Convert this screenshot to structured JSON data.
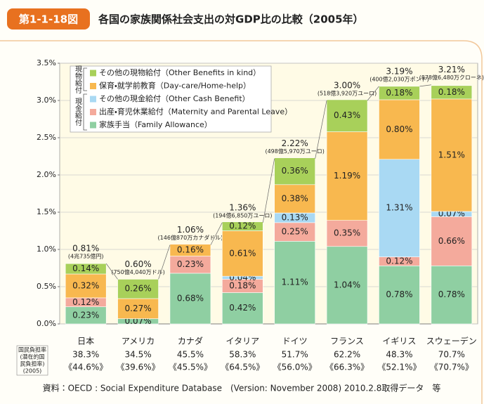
{
  "chart_data": {
    "type": "stacked_bar",
    "badge": "第1-1-18図",
    "title": "各国の家族関係社会支出の対GDP比の比較（2005年）",
    "categories": [
      "日本",
      "アメリカ",
      "カナダ",
      "イタリア",
      "ドイツ",
      "フランス",
      "イギリス",
      "スウェーデン"
    ],
    "series": [
      {
        "name": "家族手当（Family Allowance）",
        "color": "#8fcfa2",
        "values": [
          0.23,
          0.07,
          0.68,
          0.42,
          1.11,
          1.04,
          0.78,
          0.78
        ],
        "value_labels": [
          "0.23%",
          "0.07%",
          "0.68%",
          "0.42%",
          "1.11%",
          "1.04%",
          "0.78%",
          "0.78%"
        ]
      },
      {
        "name": "出産・育児休業給付（Maternity and Parental Leave）",
        "color": "#f4aa9c",
        "values": [
          0.12,
          null,
          0.23,
          0.18,
          0.25,
          0.35,
          0.12,
          0.66
        ],
        "value_labels": [
          "0.12%",
          null,
          "0.23%",
          "0.18%",
          "0.25%",
          "0.35%",
          "0.12%",
          "0.66%"
        ]
      },
      {
        "name": "その他の現金給付（Other Cash Benefit）",
        "color": "#a9d9f3",
        "values": [
          null,
          null,
          null,
          0.04,
          0.13,
          null,
          1.31,
          0.07
        ],
        "value_labels": [
          null,
          null,
          null,
          "0.04%",
          "0.13%",
          null,
          "1.31%",
          "0.07%"
        ]
      },
      {
        "name": "保育・就学前教育（Day-care/Home-help）",
        "color": "#f8b84f",
        "values": [
          0.32,
          0.27,
          0.16,
          0.61,
          0.38,
          1.19,
          0.8,
          1.51
        ],
        "value_labels": [
          "0.32%",
          "0.27%",
          "0.16%",
          "0.61%",
          "0.38%",
          "1.19%",
          "0.80%",
          "1.51%"
        ]
      },
      {
        "name": "その他の現物給付（Other Benefits in kind）",
        "color": "#a8d05a",
        "values": [
          0.14,
          0.26,
          null,
          0.12,
          0.36,
          0.43,
          0.18,
          0.18
        ],
        "value_labels": [
          "0.14%",
          "0.26%",
          null,
          "0.12%",
          "0.36%",
          "0.43%",
          "0.18%",
          "0.18%"
        ]
      }
    ],
    "legend_groups": [
      "現物給付",
      "現金給付"
    ],
    "totals": {
      "values": [
        0.81,
        0.6,
        1.06,
        1.36,
        2.22,
        3.0,
        3.19,
        3.21
      ],
      "value_labels": [
        "0.81%",
        "0.60%",
        "1.06%",
        "1.36%",
        "2.22%",
        "3.00%",
        "3.19%",
        "3.21%"
      ],
      "notes": [
        "(4兆735億円)",
        "(750億4,040万ドル)",
        "(146億870万カナダドル)",
        "(194億6,850万ユーロ)",
        "(498億5,970万ユーロ)",
        "(518億3,920万ユーロ)",
        "(400億2,030万ポンド)",
        "(878億6,480万クローネ)"
      ]
    },
    "ylim": [
      0,
      3.5
    ],
    "yticks": [
      {
        "value": 0,
        "label": "0.0%"
      },
      {
        "value": 0.5,
        "label": "0.5%"
      },
      {
        "value": 1,
        "label": "1.0%"
      },
      {
        "value": 1.5,
        "label": "1.5%"
      },
      {
        "value": 2,
        "label": "2.0%"
      },
      {
        "value": 2.5,
        "label": "2.5%"
      },
      {
        "value": 3,
        "label": "3.0%"
      },
      {
        "value": 3.5,
        "label": "3.5%"
      }
    ],
    "grid": true,
    "burden_table": {
      "header": [
        "国民負担率",
        "(潜在的国",
        "民負担率)",
        "(2005)"
      ],
      "rates": [
        "38.3%",
        "34.5%",
        "45.5%",
        "58.3%",
        "51.7%",
        "62.2%",
        "48.3%",
        "70.7%"
      ],
      "potential": [
        "《44.6%》",
        "《39.6%》",
        "《45.5%》",
        "《64.5%》",
        "《56.0%》",
        "《66.3%》",
        "《52.1%》",
        "《70.7%》"
      ]
    },
    "source": "資料：OECD : Social Expenditure Database　(Version: November 2008) 2010.2.8取得データ　等"
  }
}
